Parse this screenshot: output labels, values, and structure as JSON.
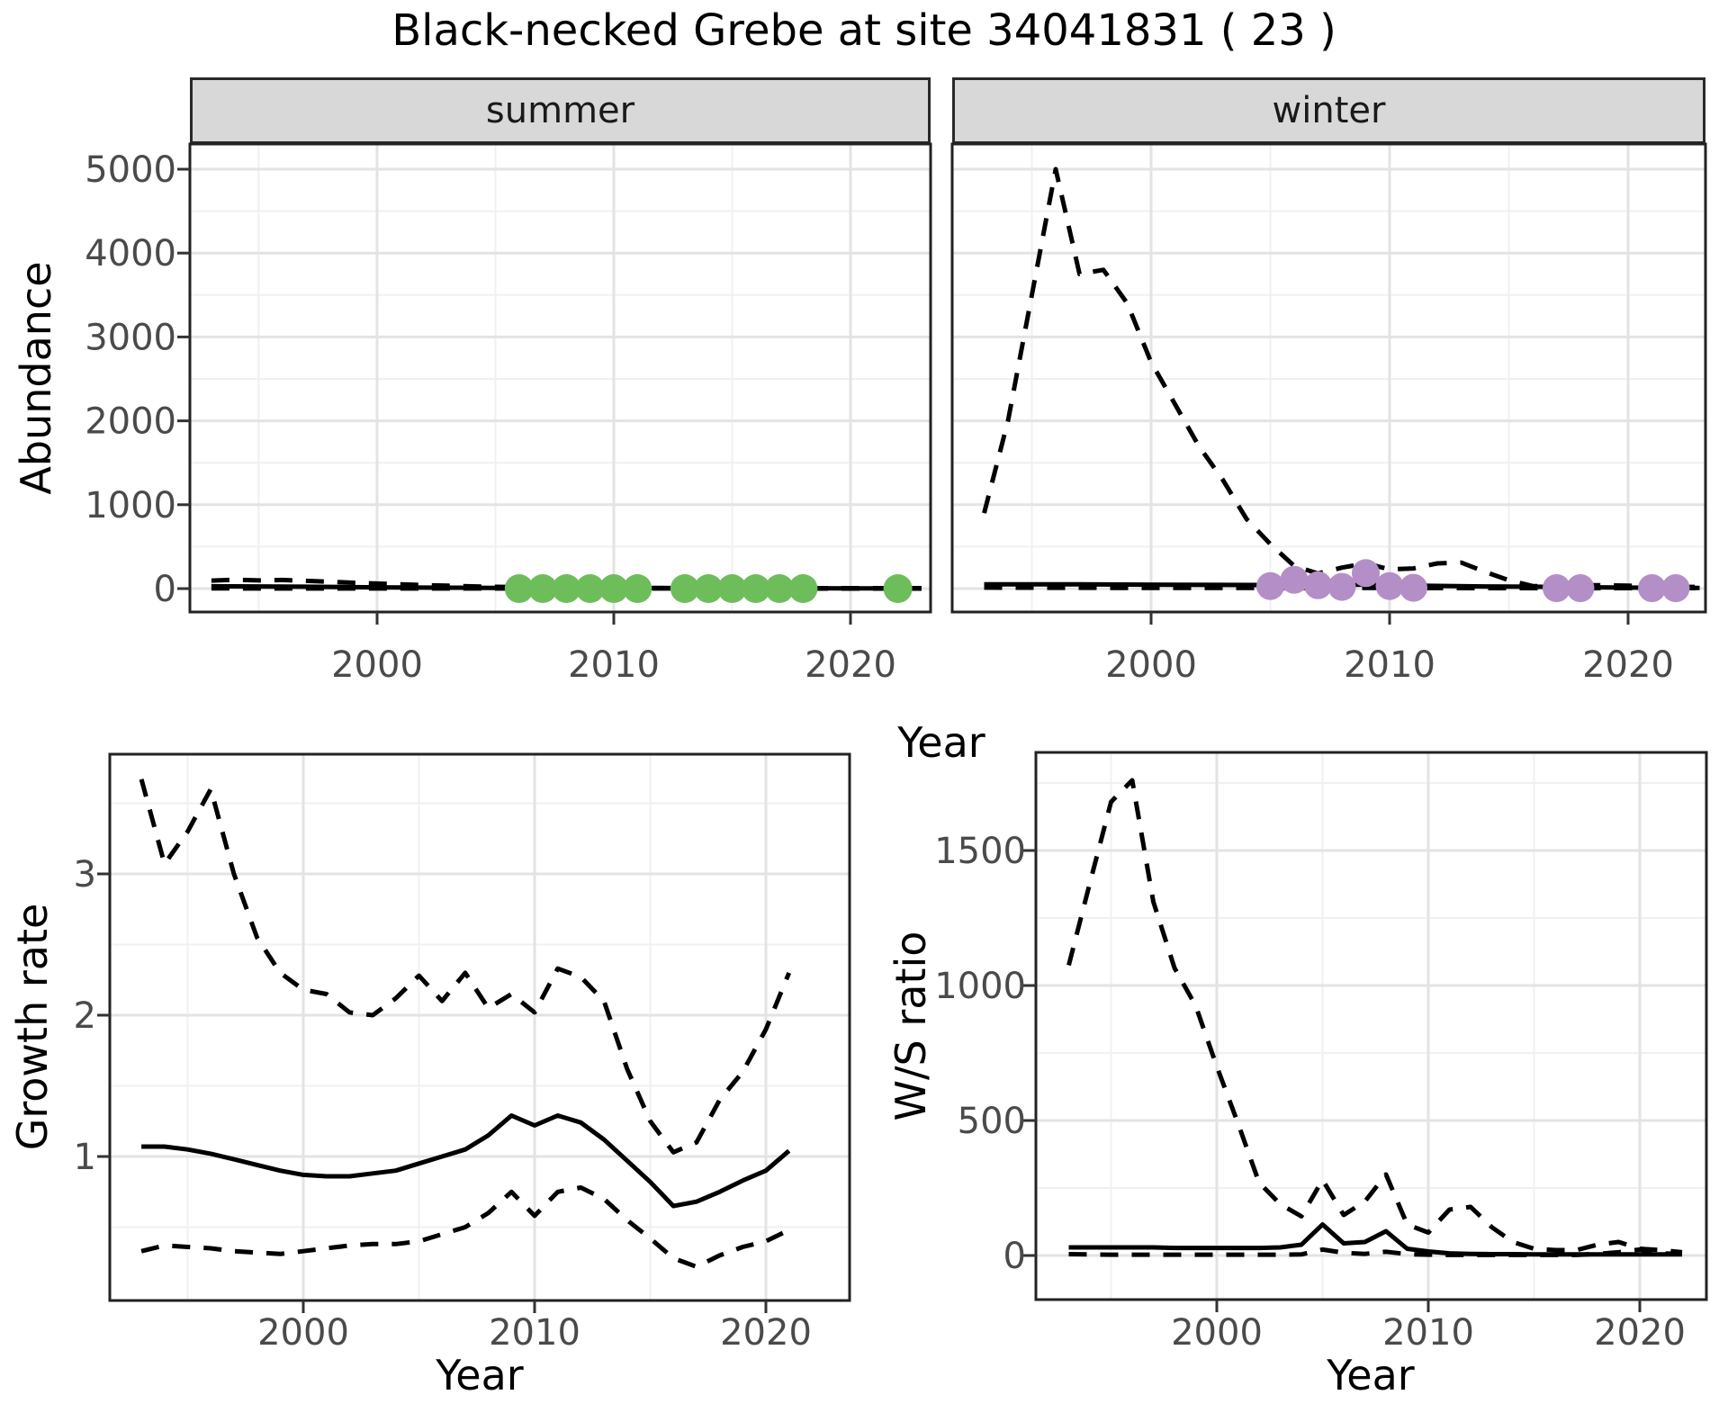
{
  "title": "Black-necked Grebe at site 34041831 ( 23 )",
  "point_colors": {
    "summer": "#6dbe5b",
    "winter": "#b48ec7"
  },
  "line_color": "#000000",
  "chart_data": [
    {
      "id": "abundance_summer",
      "type": "line",
      "facet": "summer",
      "ylabel": "Abundance",
      "xlabel": "Year",
      "xlim": [
        1992,
        2023.5
      ],
      "ylim": [
        0,
        5300
      ],
      "x_ticks": [
        2000,
        2010,
        2020
      ],
      "x_tick_labels": [
        "2000",
        "2010",
        "2020"
      ],
      "y_ticks": [
        0,
        1000,
        2000,
        3000,
        4000,
        5000
      ],
      "y_tick_labels": [
        "0",
        "1000",
        "2000",
        "3000",
        "4000",
        "5000"
      ],
      "grid": true,
      "series": [
        {
          "name": "upper_ci",
          "style": "dashed",
          "x": [
            1993,
            1994,
            1995,
            1996,
            1997,
            1998,
            1999,
            2000,
            2001,
            2002,
            2003,
            2004,
            2005,
            2006,
            2008,
            2010,
            2012,
            2015,
            2018,
            2021,
            2023
          ],
          "y": [
            95,
            105,
            98,
            103,
            92,
            82,
            70,
            60,
            50,
            42,
            34,
            27,
            21,
            17,
            12,
            9,
            8,
            6,
            5,
            5,
            5
          ]
        },
        {
          "name": "lower_ci",
          "style": "dashed",
          "x": [
            1993,
            2000,
            2010,
            2023
          ],
          "y": [
            2,
            1,
            1,
            0
          ]
        },
        {
          "name": "median",
          "style": "solid",
          "x": [
            1993,
            1994,
            1995,
            1996,
            1997,
            1998,
            1999,
            2000,
            2001,
            2002,
            2003,
            2004,
            2005,
            2006,
            2008,
            2010,
            2012,
            2014,
            2016,
            2018,
            2020,
            2023
          ],
          "y": [
            28,
            27,
            26,
            24,
            22,
            20,
            17,
            15,
            13,
            12,
            11,
            10,
            9,
            8,
            7,
            6,
            5,
            5,
            4,
            4,
            3,
            3
          ]
        }
      ],
      "points": {
        "name": "observed_counts",
        "color": "#6dbe5b",
        "x": [
          2006,
          2007,
          2008,
          2009,
          2010,
          2011,
          2013,
          2014,
          2015,
          2016,
          2017,
          2018,
          2022
        ],
        "y": [
          0,
          0,
          0,
          0,
          0,
          0,
          0,
          0,
          0,
          0,
          0,
          0,
          0
        ]
      }
    },
    {
      "id": "abundance_winter",
      "type": "line",
      "facet": "winter",
      "ylabel": "Abundance",
      "xlabel": "Year",
      "xlim": [
        1991.7,
        2023.2
      ],
      "ylim": [
        0,
        5300
      ],
      "x_ticks": [
        2000,
        2010,
        2020
      ],
      "x_tick_labels": [
        "2000",
        "2010",
        "2020"
      ],
      "y_ticks": [
        0,
        1000,
        2000,
        3000,
        4000,
        5000
      ],
      "y_tick_labels": [],
      "grid": true,
      "series": [
        {
          "name": "upper_ci",
          "style": "dashed",
          "x": [
            1993,
            1994,
            1995,
            1996,
            1997,
            1998,
            1999,
            2000,
            2001,
            2002,
            2003,
            2004,
            2005,
            2006,
            2007,
            2008,
            2009,
            2010,
            2011,
            2012,
            2013,
            2014,
            2015,
            2016,
            2017,
            2018,
            2019,
            2020,
            2021,
            2022,
            2023
          ],
          "y": [
            900,
            2000,
            3500,
            5000,
            3750,
            3800,
            3400,
            2700,
            2200,
            1700,
            1300,
            830,
            530,
            270,
            180,
            250,
            300,
            230,
            240,
            300,
            310,
            200,
            100,
            30,
            25,
            40,
            40,
            35,
            25,
            20,
            20
          ]
        },
        {
          "name": "lower_ci",
          "style": "dashed",
          "x": [
            1993,
            1996,
            2000,
            2005,
            2010,
            2015,
            2020,
            2023
          ],
          "y": [
            12,
            10,
            8,
            8,
            8,
            5,
            5,
            5
          ]
        },
        {
          "name": "median",
          "style": "solid",
          "x": [
            1993,
            1995,
            1997,
            1999,
            2001,
            2003,
            2005,
            2007,
            2008,
            2009,
            2010,
            2012,
            2014,
            2016,
            2018,
            2020,
            2022,
            2023
          ],
          "y": [
            52,
            52,
            50,
            48,
            46,
            44,
            42,
            40,
            42,
            48,
            40,
            32,
            26,
            22,
            16,
            12,
            9,
            8
          ]
        }
      ],
      "points": {
        "name": "observed_counts",
        "color": "#b48ec7",
        "x": [
          2005,
          2006,
          2007,
          2008,
          2009,
          2010,
          2011,
          2017,
          2018,
          2021,
          2022
        ],
        "y": [
          30,
          105,
          40,
          20,
          185,
          30,
          10,
          5,
          5,
          5,
          5
        ]
      }
    },
    {
      "id": "growth_rate",
      "type": "line",
      "facet": "",
      "ylabel": "Growth rate",
      "xlabel": "Year",
      "xlim": [
        1991.6,
        2023.6
      ],
      "ylim": [
        0,
        3.87
      ],
      "x_ticks": [
        2000,
        2010,
        2020
      ],
      "x_tick_labels": [
        "2000",
        "2010",
        "2020"
      ],
      "y_ticks": [
        1,
        2,
        3
      ],
      "y_tick_labels": [
        "1",
        "2",
        "3"
      ],
      "grid": true,
      "series": [
        {
          "name": "upper_ci",
          "style": "dashed",
          "x": [
            1993,
            1994,
            1995,
            1996,
            1997,
            1998,
            1999,
            2000,
            2001,
            2002,
            2003,
            2004,
            2005,
            2006,
            2007,
            2008,
            2009,
            2010,
            2011,
            2012,
            2013,
            2014,
            2015,
            2016,
            2017,
            2018,
            2019,
            2020,
            2021
          ],
          "y": [
            3.67,
            3.07,
            3.3,
            3.6,
            3.0,
            2.55,
            2.3,
            2.18,
            2.15,
            2.02,
            2.0,
            2.12,
            2.28,
            2.1,
            2.3,
            2.05,
            2.15,
            2.02,
            2.33,
            2.27,
            2.1,
            1.62,
            1.25,
            1.03,
            1.1,
            1.4,
            1.6,
            1.9,
            2.3
          ]
        },
        {
          "name": "lower_ci",
          "style": "dashed",
          "x": [
            1993,
            1994,
            1995,
            1996,
            1997,
            1998,
            1999,
            2000,
            2001,
            2002,
            2003,
            2004,
            2005,
            2006,
            2007,
            2008,
            2009,
            2010,
            2011,
            2012,
            2013,
            2014,
            2015,
            2016,
            2017,
            2018,
            2019,
            2020,
            2021
          ],
          "y": [
            0.33,
            0.37,
            0.36,
            0.35,
            0.33,
            0.32,
            0.31,
            0.33,
            0.35,
            0.37,
            0.38,
            0.38,
            0.4,
            0.45,
            0.5,
            0.6,
            0.75,
            0.58,
            0.75,
            0.78,
            0.7,
            0.55,
            0.42,
            0.28,
            0.22,
            0.3,
            0.36,
            0.4,
            0.48
          ]
        },
        {
          "name": "median",
          "style": "solid",
          "x": [
            1993,
            1994,
            1995,
            1996,
            1997,
            1998,
            1999,
            2000,
            2001,
            2002,
            2003,
            2004,
            2005,
            2006,
            2007,
            2008,
            2009,
            2010,
            2011,
            2012,
            2013,
            2014,
            2015,
            2016,
            2017,
            2018,
            2019,
            2020,
            2021
          ],
          "y": [
            1.07,
            1.07,
            1.05,
            1.02,
            0.98,
            0.94,
            0.9,
            0.87,
            0.86,
            0.86,
            0.88,
            0.9,
            0.95,
            1.0,
            1.05,
            1.15,
            1.29,
            1.22,
            1.29,
            1.24,
            1.12,
            0.97,
            0.82,
            0.65,
            0.68,
            0.75,
            0.83,
            0.9,
            1.04
          ]
        }
      ],
      "points": null
    },
    {
      "id": "ws_ratio",
      "type": "line",
      "facet": "",
      "ylabel": "W/S ratio",
      "xlabel": "Year",
      "xlim": [
        1991.4,
        2023.1
      ],
      "ylim": [
        0,
        1860
      ],
      "x_ticks": [
        2000,
        2010,
        2020
      ],
      "x_tick_labels": [
        "2000",
        "2010",
        "2020"
      ],
      "y_ticks": [
        0,
        500,
        1000,
        1500
      ],
      "y_tick_labels": [
        "0",
        "500",
        "1000",
        "1500"
      ],
      "grid": true,
      "series": [
        {
          "name": "upper_ci",
          "style": "dashed",
          "x": [
            1993,
            1994,
            1995,
            1996,
            1997,
            1998,
            1999,
            2000,
            2001,
            2002,
            2003,
            2004,
            2005,
            2006,
            2007,
            2008,
            2009,
            2010,
            2011,
            2012,
            2013,
            2014,
            2015,
            2016,
            2017,
            2018,
            2019,
            2020,
            2021,
            2022
          ],
          "y": [
            1075,
            1380,
            1680,
            1760,
            1310,
            1065,
            925,
            700,
            490,
            270,
            190,
            145,
            280,
            150,
            200,
            300,
            115,
            85,
            170,
            180,
            105,
            50,
            25,
            20,
            20,
            40,
            50,
            25,
            20,
            12
          ]
        },
        {
          "name": "lower_ci",
          "style": "dashed",
          "x": [
            1993,
            1994,
            1995,
            1996,
            1997,
            1998,
            1999,
            2000,
            2001,
            2002,
            2003,
            2004,
            2005,
            2006,
            2007,
            2008,
            2009,
            2010,
            2011,
            2012,
            2013,
            2014,
            2015,
            2016,
            2017,
            2018,
            2019,
            2020,
            2021,
            2022
          ],
          "y": [
            5,
            4,
            3,
            3,
            3,
            3,
            3,
            3,
            3,
            3,
            3,
            4,
            22,
            10,
            6,
            14,
            5,
            3,
            2,
            2,
            2,
            2,
            2,
            2,
            2,
            6,
            12,
            22,
            8,
            5
          ]
        },
        {
          "name": "median",
          "style": "solid",
          "x": [
            1993,
            1994,
            1995,
            1996,
            1997,
            1998,
            1999,
            2000,
            2001,
            2002,
            2003,
            2004,
            2005,
            2006,
            2007,
            2008,
            2009,
            2010,
            2011,
            2012,
            2013,
            2014,
            2015,
            2016,
            2017,
            2018,
            2019,
            2020,
            2021,
            2022
          ],
          "y": [
            30,
            30,
            30,
            30,
            30,
            28,
            28,
            28,
            28,
            28,
            30,
            40,
            115,
            45,
            50,
            90,
            25,
            15,
            8,
            6,
            5,
            5,
            4,
            4,
            4,
            4,
            4,
            4,
            4,
            4
          ]
        }
      ],
      "points": null
    }
  ]
}
